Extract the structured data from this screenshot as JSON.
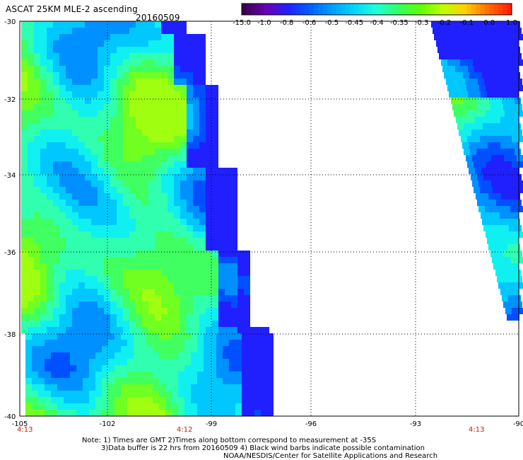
{
  "header": {
    "title": "ASCAT 25KM MLE-2 ascending",
    "date": "20160509"
  },
  "colorbar": {
    "labels": [
      "-15.0",
      "-1.0",
      "-0.8",
      "-0.6",
      "-0.5",
      "-0.45",
      "-0.4",
      "-0.35",
      "-0.3",
      "-0.2",
      "-0.1",
      "0.0",
      "1.0"
    ],
    "colors": [
      "#3a0050",
      "#6a00b4",
      "#2020ff",
      "#0060ff",
      "#00a0ff",
      "#00d8ff",
      "#20ffd8",
      "#30ff60",
      "#60ff00",
      "#c0ff00",
      "#ffd000",
      "#ff7000",
      "#ff2000"
    ]
  },
  "axes": {
    "lat_labels": [
      "-30",
      "-32",
      "-34",
      "-36",
      "-38",
      "-40"
    ],
    "lon_labels": [
      "-105",
      "-102",
      "-99",
      "-96",
      "-93",
      "-90"
    ]
  },
  "swaths": {
    "times": [
      "4:13",
      "4:12",
      "4:13"
    ]
  },
  "footer": {
    "note_line1": "Note: 1) Times are GMT 2)Times along bottom correspond to measurement at -35S",
    "note_line2": "3)Data buffer is 22 hrs from 20160509 4) Black wind barbs indicate possible contamination",
    "credit": "NOAA/NESDIS/Center for Satellite Applications and Research"
  }
}
